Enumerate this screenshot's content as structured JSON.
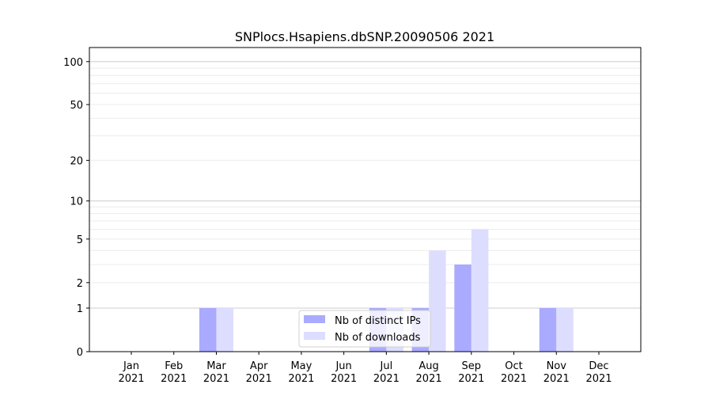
{
  "chart_data": {
    "type": "bar",
    "title": "SNPlocs.Hsapiens.dbSNP.20090506 2021",
    "xlabel": "",
    "ylabel": "",
    "yscale": "log(1+y)",
    "ylim": [
      0,
      125
    ],
    "yticks": [
      0,
      1,
      2,
      5,
      10,
      20,
      50,
      100
    ],
    "ytick_labels": [
      "0",
      "1",
      "2",
      "5",
      "10",
      "20",
      "50",
      "100"
    ],
    "categories": [
      "Jan\n2021",
      "Feb\n2021",
      "Mar\n2021",
      "Apr\n2021",
      "May\n2021",
      "Jun\n2021",
      "Jul\n2021",
      "Aug\n2021",
      "Sep\n2021",
      "Oct\n2021",
      "Nov\n2021",
      "Dec\n2021"
    ],
    "series": [
      {
        "name": "Nb of distinct IPs",
        "color": "#aaaaff",
        "values": [
          0,
          0,
          1,
          0,
          0,
          0,
          1,
          1,
          3,
          0,
          1,
          0
        ]
      },
      {
        "name": "Nb of downloads",
        "color": "#ddddff",
        "values": [
          0,
          0,
          1,
          0,
          0,
          0,
          1,
          4,
          6,
          0,
          1,
          0
        ]
      }
    ],
    "grid": true,
    "legend_position": "lower-center"
  }
}
